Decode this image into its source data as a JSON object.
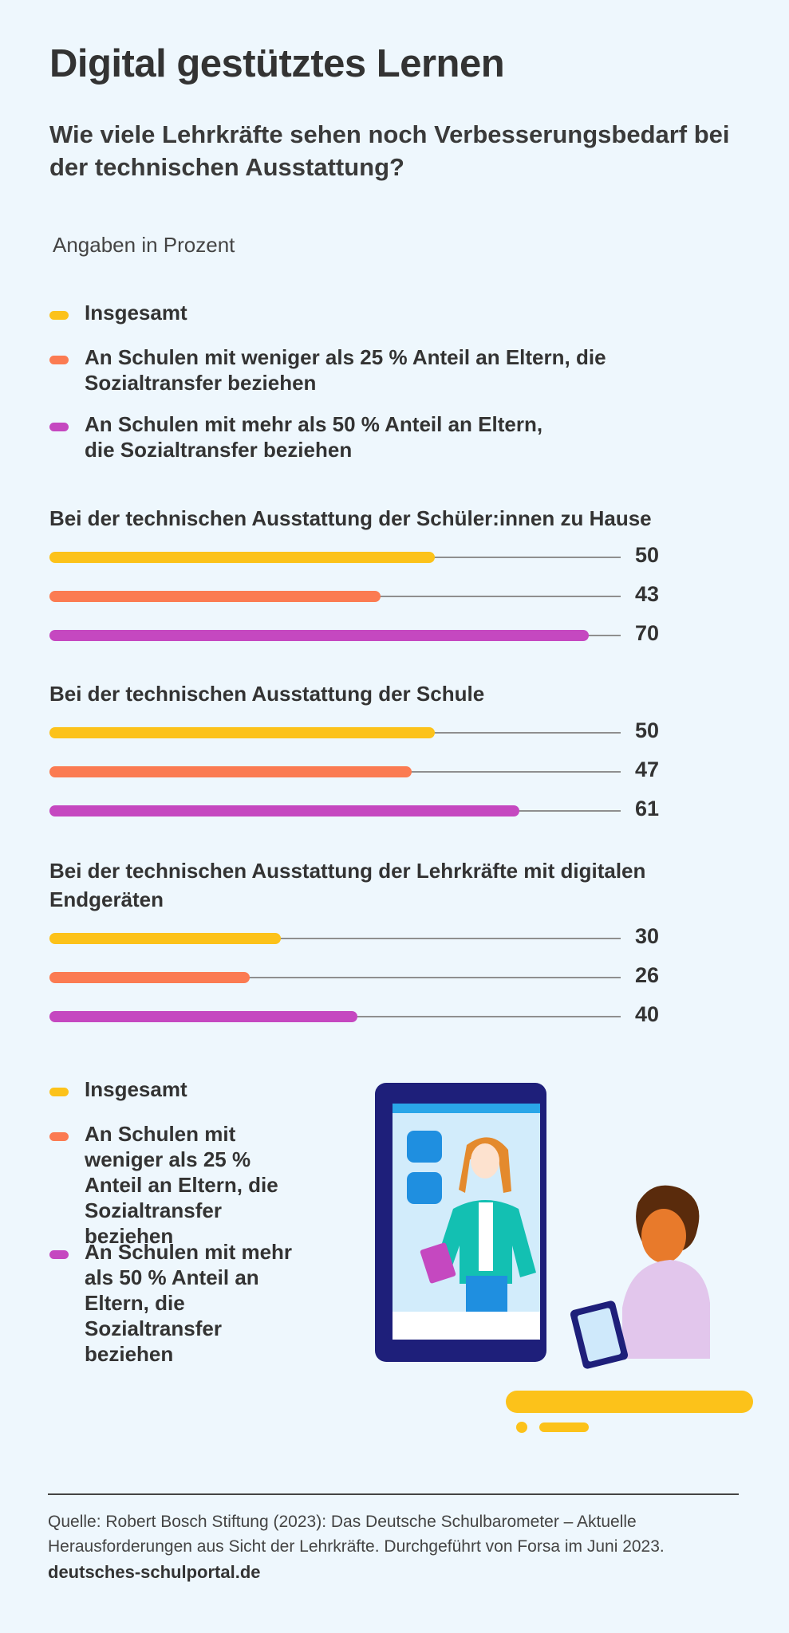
{
  "header": {
    "title": "Digital gestütztes Lernen",
    "subtitle": "Wie viele Lehrkräfte sehen noch Verbesserungsbedarf bei der technischen Ausstattung?",
    "unit": "Angaben in Prozent"
  },
  "legend": [
    {
      "label": "Insgesamt",
      "color": "#fcc21a"
    },
    {
      "label": "An Schulen mit weniger als 25 % Anteil an Eltern, die Sozialtransfer beziehen",
      "color": "#fb7b52"
    },
    {
      "label": "An Schulen mit mehr als 50 % Anteil an Eltern, die Sozialtransfer beziehen",
      "color": "#c548c0"
    }
  ],
  "legend_bottom": [
    {
      "label": "Insgesamt",
      "color": "#fcc21a"
    },
    {
      "label": "An Schulen mit weniger als 25 % Anteil an Eltern, die Sozialtransfer beziehen",
      "color": "#fb7b52"
    },
    {
      "label": "An Schulen mit mehr als 50 % Anteil an Eltern, die Sozialtransfer beziehen",
      "color": "#c548c0"
    }
  ],
  "chart_data": {
    "type": "bar",
    "orientation": "horizontal",
    "unit": "Angaben in Prozent",
    "series_names": [
      "Insgesamt",
      "An Schulen mit weniger als 25 % Anteil an Eltern, die Sozialtransfer beziehen",
      "An Schulen mit mehr als 50 % Anteil an Eltern, die Sozialtransfer beziehen"
    ],
    "colors": [
      "#fcc21a",
      "#fb7b52",
      "#c548c0"
    ],
    "groups": [
      {
        "label": "Bei der technischen Ausstattung der Schüler:innen zu Hause",
        "values": [
          50,
          43,
          70
        ]
      },
      {
        "label": "Bei der technischen Ausstattung der Schule",
        "values": [
          50,
          47,
          61
        ]
      },
      {
        "label": "Bei der technischen Ausstattung der Lehrkräfte mit digitalen Endgeräten",
        "values": [
          30,
          26,
          40
        ]
      }
    ]
  },
  "footer": {
    "source": "Quelle: Robert Bosch Stiftung (2023): Das Deutsche Schulbarometer – Aktuelle Herausforderungen aus Sicht der Lehrkräfte. Durchgeführt von Forsa im Juni 2023.",
    "site": "deutsches-schulportal.de"
  }
}
